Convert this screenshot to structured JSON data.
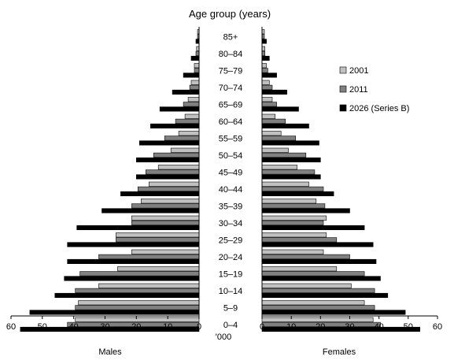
{
  "chart_data": {
    "type": "bar",
    "title": "Age group (years)",
    "male_label": "Males",
    "female_label": "Females",
    "unit_label": "'000",
    "xlim": [
      0,
      60
    ],
    "x_ticks": [
      "60",
      "50",
      "40",
      "30",
      "20",
      "10",
      "0",
      "0",
      "10",
      "20",
      "30",
      "40",
      "50",
      "60"
    ],
    "categories": [
      "0–4",
      "5–9",
      "10–14",
      "15–19",
      "20–24",
      "25–29",
      "30–34",
      "35–39",
      "40–44",
      "45–49",
      "50–54",
      "55–59",
      "60–64",
      "65–69",
      "70–74",
      "75–79",
      "80–84",
      "85+"
    ],
    "legend_position": "right",
    "series": [
      {
        "name": "2001",
        "color": "#c0c0c0",
        "males": [
          39.5,
          38.5,
          32.0,
          26.0,
          21.5,
          26.5,
          21.5,
          18.5,
          16.0,
          13.0,
          9.0,
          6.5,
          4.5,
          3.5,
          2.5,
          1.5,
          0.8,
          0.5
        ],
        "females": [
          38.0,
          35.0,
          30.5,
          25.5,
          21.0,
          22.0,
          22.0,
          18.5,
          16.0,
          12.0,
          9.0,
          6.5,
          4.5,
          3.5,
          2.5,
          1.5,
          1.0,
          0.8
        ]
      },
      {
        "name": "2011",
        "color": "#808080",
        "males": [
          42.0,
          39.5,
          39.5,
          38.0,
          32.0,
          26.5,
          21.5,
          21.5,
          19.5,
          17.0,
          14.5,
          11.0,
          7.5,
          5.0,
          3.0,
          1.5,
          1.0,
          0.5
        ],
        "females": [
          40.5,
          38.5,
          38.5,
          35.0,
          30.0,
          25.5,
          21.0,
          21.5,
          21.0,
          18.0,
          15.0,
          11.5,
          8.0,
          5.0,
          3.5,
          2.0,
          1.0,
          0.8
        ]
      },
      {
        "name": "2026 (Series B)",
        "color": "#000000",
        "males": [
          57.0,
          54.0,
          46.0,
          43.0,
          42.0,
          42.0,
          39.0,
          31.0,
          25.0,
          20.0,
          20.0,
          19.0,
          15.5,
          12.5,
          8.5,
          5.0,
          2.5,
          1.0
        ],
        "females": [
          54.0,
          49.0,
          43.0,
          40.5,
          39.0,
          38.0,
          35.0,
          30.0,
          24.5,
          20.0,
          20.0,
          19.5,
          16.0,
          12.5,
          8.5,
          5.0,
          2.5,
          1.5
        ]
      }
    ]
  }
}
